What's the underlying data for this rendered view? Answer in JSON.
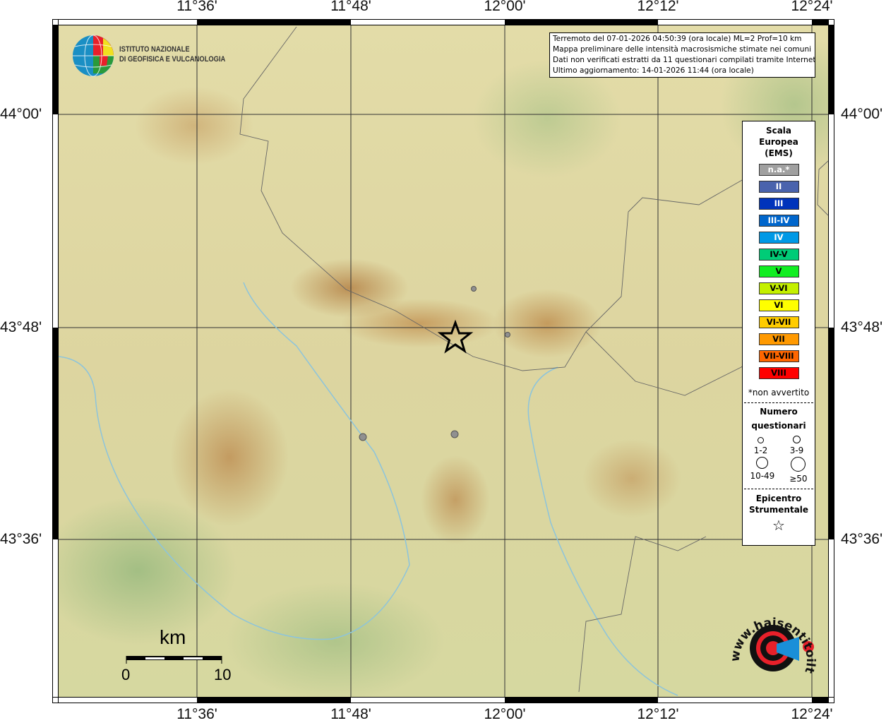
{
  "axes": {
    "lon_ticks": [
      "11°36'",
      "11°48'",
      "12°00'",
      "12°12'",
      "12°24'"
    ],
    "lat_ticks": [
      "44°00'",
      "43°48'",
      "43°36'"
    ]
  },
  "info_box": {
    "line1": "Terremoto del 07-01-2026 04:50:39 (ora locale) ML=2 Prof=10 km",
    "line2": "Mappa preliminare delle intensità macrosismiche stimate nei comuni",
    "line3": "Dati non verificati estratti da 11 questionari compilati tramite Internet.",
    "line4": "Ultimo aggiornamento: 14-01-2026 11:44 (ora locale)"
  },
  "logo_ingv": {
    "line1": "ISTITUTO NAZIONALE",
    "line2": "DI GEOFISICA E VULCANOLOGIA"
  },
  "logo_hsit": "www.haisentitoilterremoto.it",
  "legend": {
    "title": [
      "Scala",
      "Europea",
      "(EMS)"
    ],
    "scale": [
      {
        "label": "n.a.*",
        "color": "#a0a0a0",
        "text_color": "#ffffff"
      },
      {
        "label": "II",
        "color": "#4a63ad",
        "text_color": "#ffffff"
      },
      {
        "label": "III",
        "color": "#0033bb",
        "text_color": "#ffffff"
      },
      {
        "label": "III-IV",
        "color": "#0066cc",
        "text_color": "#ffffff"
      },
      {
        "label": "IV",
        "color": "#0099e6",
        "text_color": "#ffffff"
      },
      {
        "label": "IV-V",
        "color": "#00cc77",
        "text_color": "#000000"
      },
      {
        "label": "V",
        "color": "#11ee22",
        "text_color": "#000000"
      },
      {
        "label": "V-VI",
        "color": "#c4f000",
        "text_color": "#000000"
      },
      {
        "label": "VI",
        "color": "#ffff00",
        "text_color": "#000000"
      },
      {
        "label": "VI-VII",
        "color": "#ffcc00",
        "text_color": "#000000"
      },
      {
        "label": "VII",
        "color": "#ff9900",
        "text_color": "#000000"
      },
      {
        "label": "VII-VIII",
        "color": "#ff6600",
        "text_color": "#000000"
      },
      {
        "label": "VIII",
        "color": "#ff0000",
        "text_color": "#000000"
      }
    ],
    "note": "*non avvertito",
    "questionnaires_title": [
      "Numero",
      "questionari"
    ],
    "sizes": [
      "1-2",
      "3-9",
      "10-49",
      "≥50"
    ],
    "epicenter_title": [
      "Epicentro",
      "Strumentale"
    ]
  },
  "scale_bar": {
    "unit": "km",
    "min": "0",
    "max": "10"
  },
  "markers": [
    {
      "type": "questionnaire",
      "class": "1-2",
      "intensity": "n.a.*"
    },
    {
      "type": "questionnaire",
      "class": "1-2",
      "intensity": "n.a.*"
    },
    {
      "type": "questionnaire",
      "class": "1-2",
      "intensity": "n.a.*"
    },
    {
      "type": "questionnaire",
      "class": "1-2",
      "intensity": "n.a.*"
    }
  ]
}
